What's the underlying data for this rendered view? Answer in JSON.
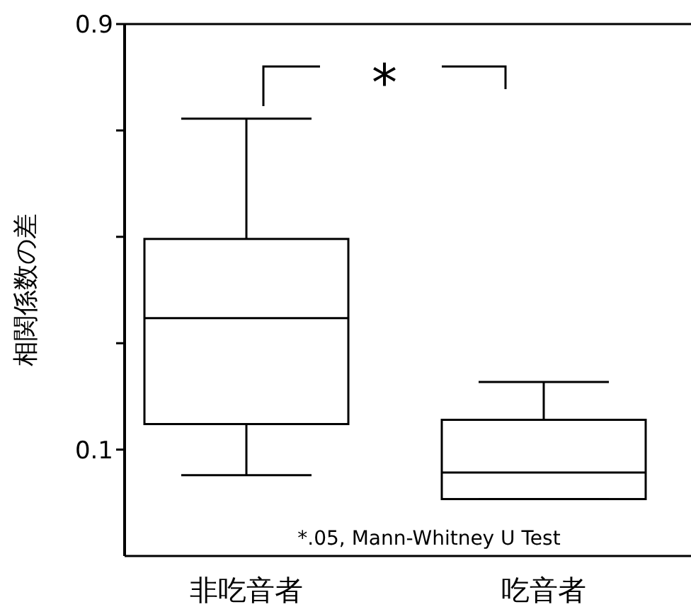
{
  "chart_data": {
    "type": "box",
    "ylabel": "相関係数の差",
    "categories": [
      "非吃音者",
      "吃音者"
    ],
    "boxes": [
      {
        "low": 0.052,
        "q1": 0.148,
        "median": 0.347,
        "q3": 0.496,
        "high": 0.722
      },
      {
        "low": 0.007,
        "q1": 0.007,
        "median": 0.057,
        "q3": 0.156,
        "high": 0.227
      }
    ],
    "ylim": [
      -0.1,
      0.9
    ],
    "yticks": [
      {
        "value": 0.1,
        "label": "0.1"
      },
      {
        "value": 0.3,
        "label": null
      },
      {
        "value": 0.5,
        "label": null
      },
      {
        "value": 0.7,
        "label": null
      },
      {
        "value": 0.9,
        "label": "0.9"
      }
    ],
    "grid": false,
    "annotations": [
      "*",
      "*.05, Mann-Whitney U Test"
    ]
  }
}
